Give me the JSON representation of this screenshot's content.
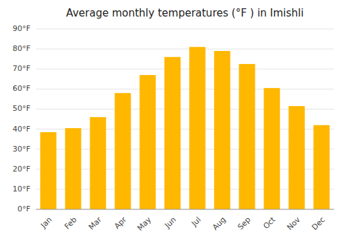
{
  "chart_data": {
    "type": "bar",
    "title": "Average monthly temperatures (°F ) in Imishli",
    "categories": [
      "Jan",
      "Feb",
      "Mar",
      "Apr",
      "May",
      "Jun",
      "Jul",
      "Aug",
      "Sep",
      "Oct",
      "Nov",
      "Dec"
    ],
    "values": [
      38.5,
      40.5,
      46.0,
      58.0,
      67.0,
      76.0,
      81.0,
      79.0,
      72.5,
      60.5,
      51.5,
      42.0
    ],
    "color": "#FFB700",
    "ylim": [
      0,
      90
    ],
    "yticks": [
      {
        "value": 0,
        "label": "0°F"
      },
      {
        "value": 10,
        "label": "10°F"
      },
      {
        "value": 20,
        "label": "20°F"
      },
      {
        "value": 30,
        "label": "30°F"
      },
      {
        "value": 40,
        "label": "40°F"
      },
      {
        "value": 50,
        "label": "50°F"
      },
      {
        "value": 60,
        "label": "60°F"
      },
      {
        "value": 70,
        "label": "70°F"
      },
      {
        "value": 80,
        "label": "80°F"
      },
      {
        "value": 90,
        "label": "90°F"
      }
    ],
    "grid": true
  }
}
